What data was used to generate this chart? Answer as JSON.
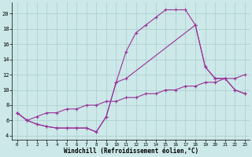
{
  "background_color": "#cce8e8",
  "grid_color": "#aacccc",
  "line_color": "#993399",
  "marker": "+",
  "markersize": 3,
  "linewidth": 0.8,
  "xlabel": "Windchill (Refroidissement éolien,°C)",
  "xlabel_fontsize": 5.5,
  "xlim": [
    -0.5,
    23.5
  ],
  "ylim": [
    3.5,
    21.5
  ],
  "yticks": [
    4,
    6,
    8,
    10,
    12,
    14,
    16,
    18,
    20
  ],
  "series": [
    {
      "x": [
        0,
        1,
        2,
        3,
        4,
        5,
        6,
        7,
        8,
        9,
        10,
        11,
        12,
        13,
        14,
        15,
        16,
        17,
        18
      ],
      "y": [
        7.0,
        6.0,
        5.5,
        5.2,
        5.0,
        5.0,
        5.0,
        5.0,
        4.5,
        6.5,
        11.0,
        15.0,
        17.5,
        18.5,
        19.5,
        20.5,
        20.5,
        20.5,
        18.5
      ]
    },
    {
      "x": [
        18,
        19,
        20,
        21,
        22,
        23
      ],
      "y": [
        18.5,
        13.0,
        11.5,
        11.5,
        10.0,
        9.5
      ]
    },
    {
      "x": [
        0,
        1,
        2,
        3,
        4,
        5,
        6,
        7,
        8,
        9,
        10,
        11,
        18,
        19,
        20,
        21,
        22,
        23
      ],
      "y": [
        7.0,
        6.0,
        5.5,
        5.2,
        5.0,
        5.0,
        5.0,
        5.0,
        4.5,
        6.5,
        11.0,
        11.5,
        18.5,
        13.0,
        11.5,
        11.5,
        10.0,
        9.5
      ]
    },
    {
      "x": [
        0,
        1,
        2,
        3,
        4,
        5,
        6,
        7,
        8,
        9,
        10,
        11,
        12,
        13,
        14,
        15,
        16,
        17,
        18,
        19,
        20,
        21,
        22,
        23
      ],
      "y": [
        7.0,
        6.0,
        6.5,
        7.0,
        7.0,
        7.5,
        7.5,
        8.0,
        8.0,
        8.5,
        8.5,
        9.0,
        9.0,
        9.5,
        9.5,
        10.0,
        10.0,
        10.5,
        10.5,
        11.0,
        11.0,
        11.5,
        11.5,
        12.0
      ]
    }
  ]
}
